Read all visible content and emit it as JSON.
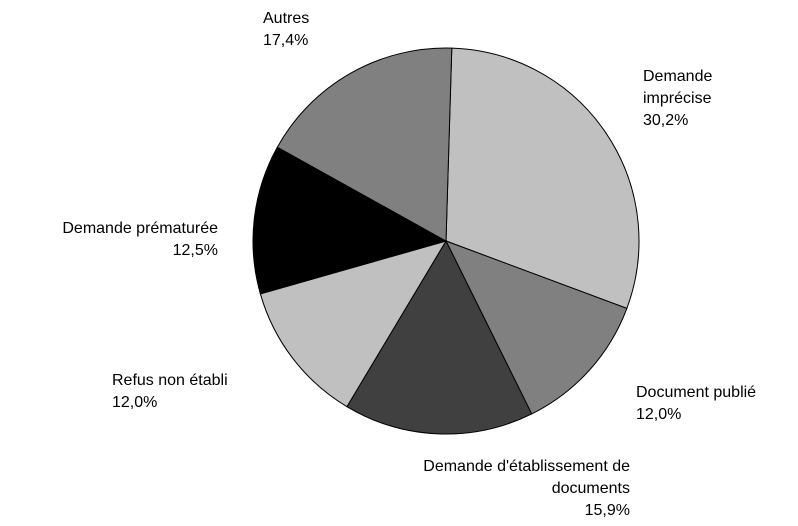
{
  "chart_data": {
    "type": "pie",
    "categories": [
      "Demande imprécise",
      "Document publié",
      "Demande d'établissement de documents",
      "Refus non établi",
      "Demande prématurée",
      "Autres"
    ],
    "values": [
      30.2,
      12.0,
      15.9,
      12.0,
      12.5,
      17.4
    ],
    "value_labels": [
      "30,2%",
      "12,0%",
      "15,9%",
      "12,0%",
      "12,5%",
      "17,4%"
    ],
    "colors": [
      "#c0c0c0",
      "#808080",
      "#404040",
      "#c0c0c0",
      "#000000",
      "#808080"
    ]
  }
}
